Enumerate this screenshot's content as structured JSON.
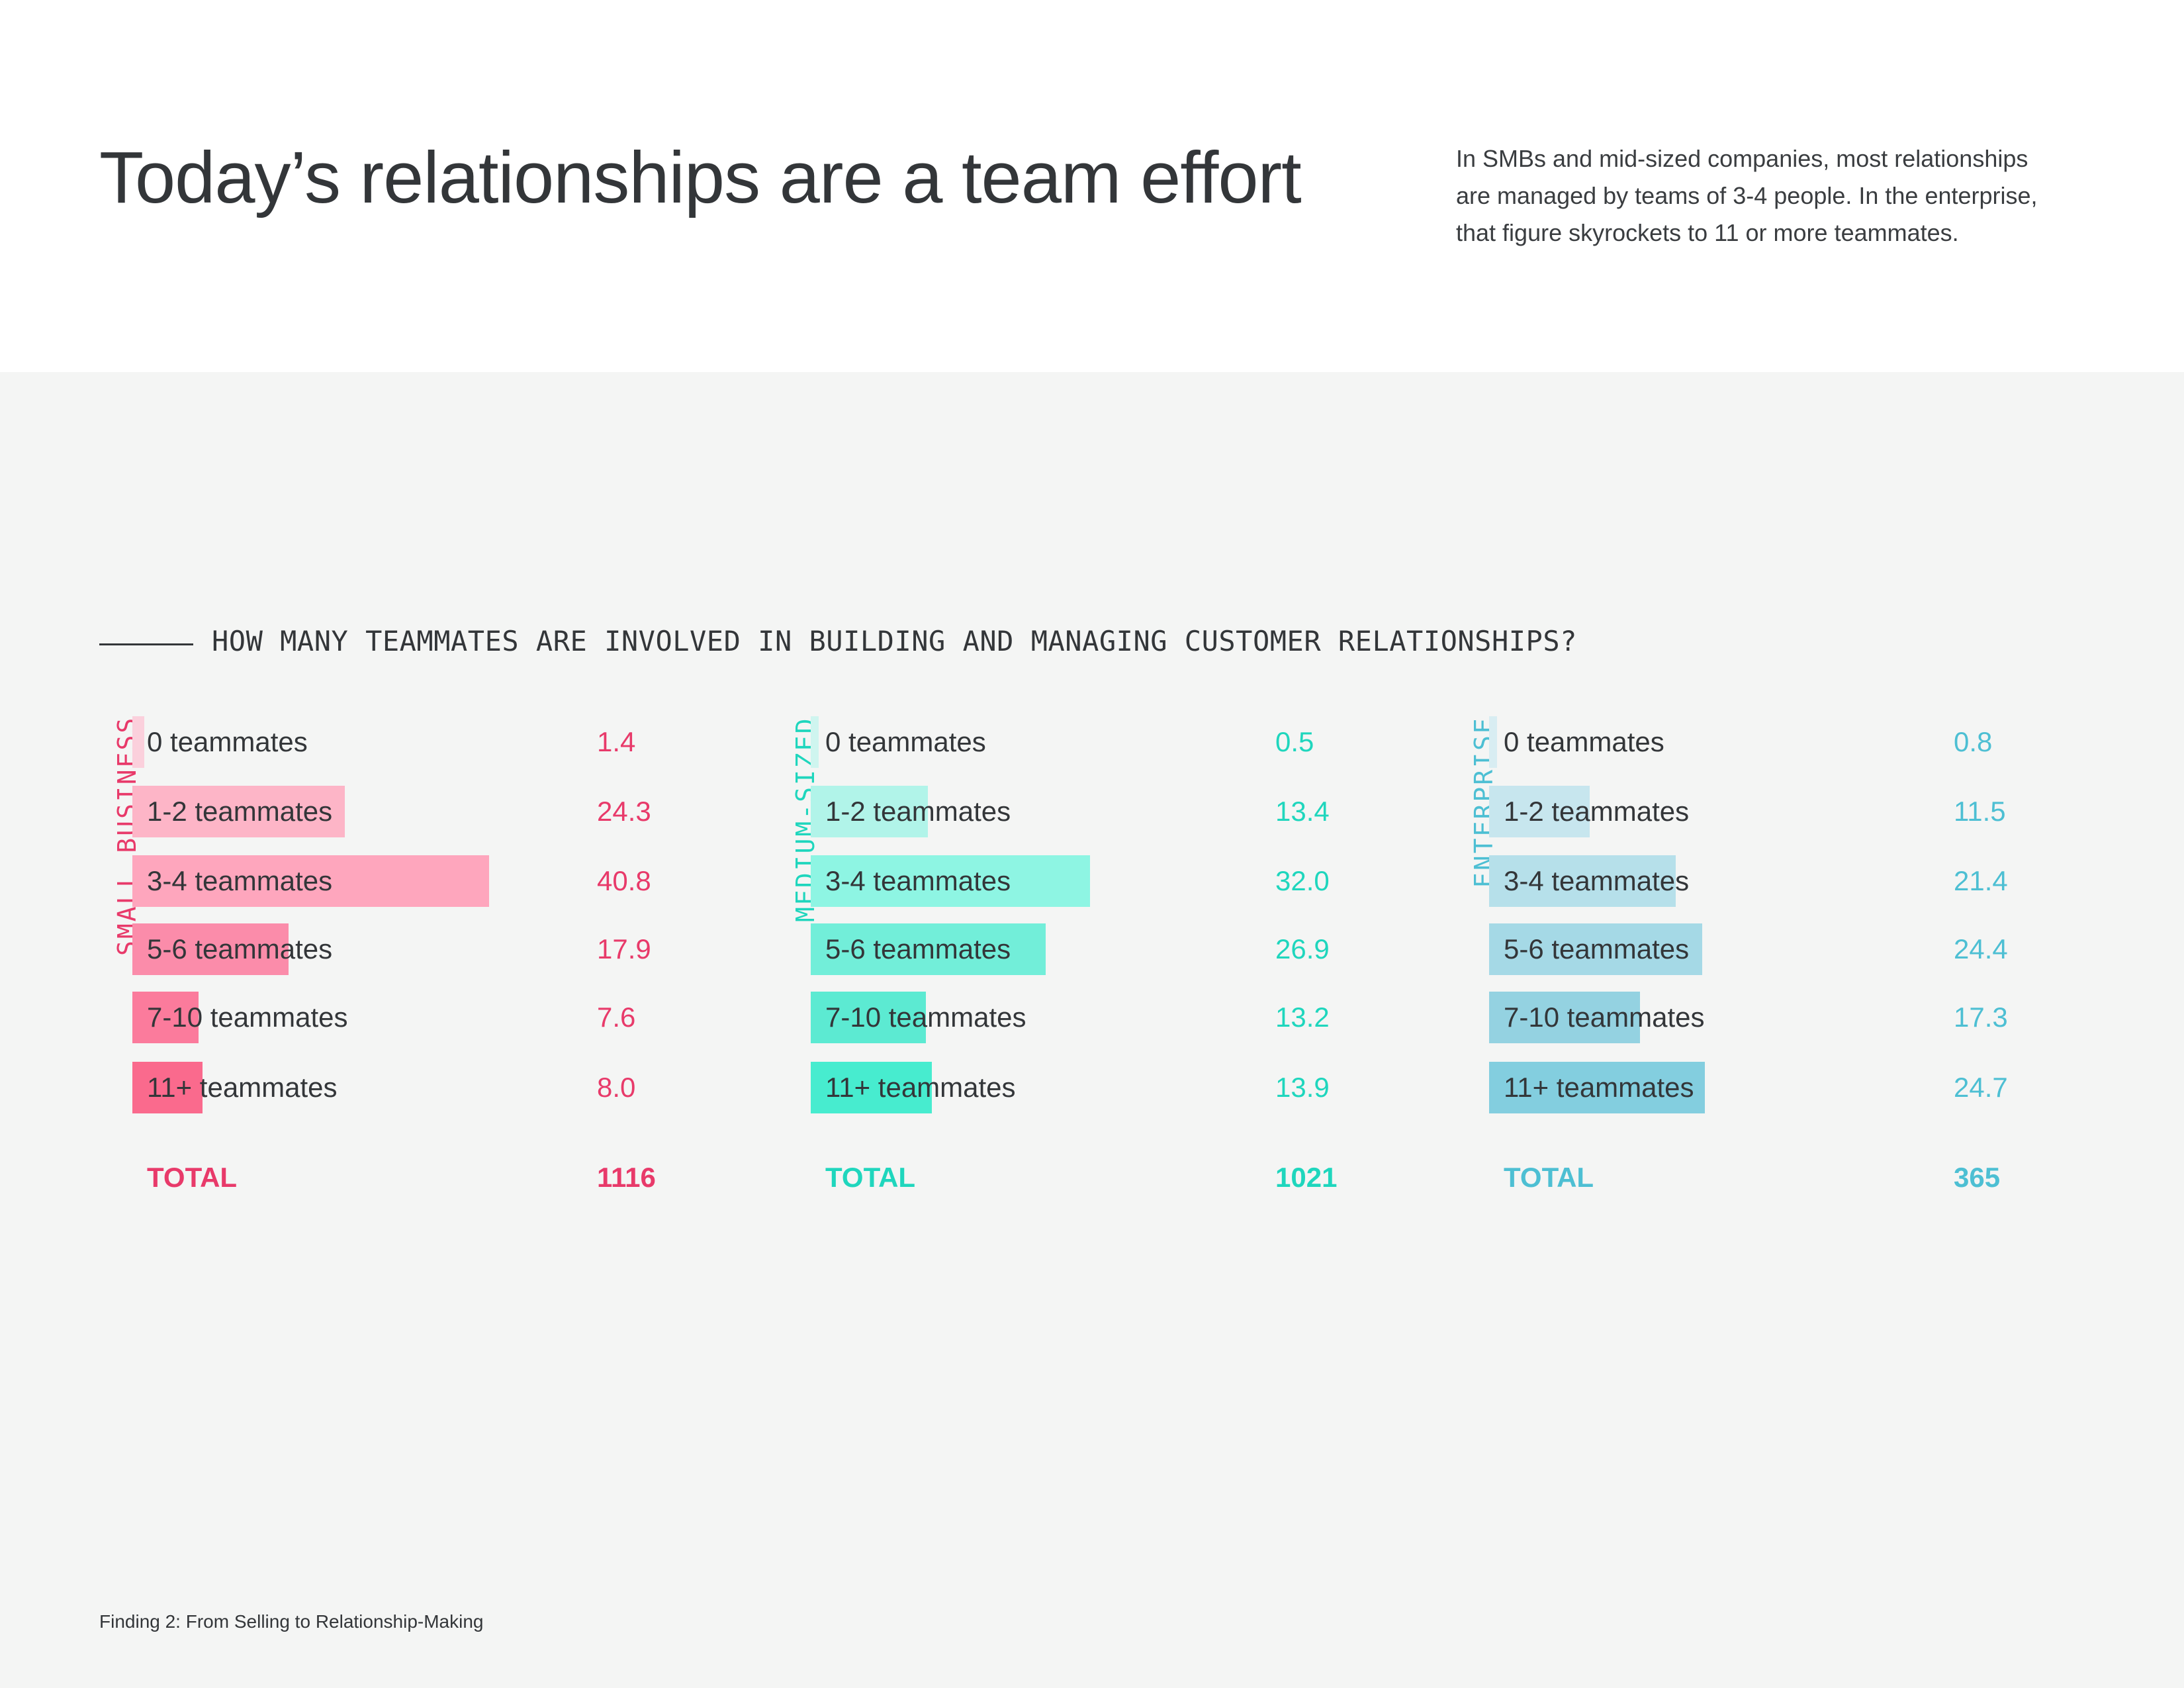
{
  "header": {
    "title": "Today’s relationships are a team effort",
    "intro": "In SMBs and mid-sized companies, most relationships are managed by teams of 3-4 people. In the enterprise, that figure skyrockets to 11 or more teammates."
  },
  "chart_data": {
    "type": "bar",
    "title": "HOW MANY TEAMMATES ARE INVOLVED IN BUILDING AND MANAGING CUSTOMER RELATIONSHIPS?",
    "categories": [
      "0 teammates",
      "1-2 teammates",
      "3-4 teammates",
      "5-6 teammates",
      "7-10 teammates",
      "11+ teammates"
    ],
    "total_label": "TOTAL",
    "value_max": 41,
    "series": [
      {
        "name": "SMALL BUSINESS",
        "values": [
          1.4,
          24.3,
          40.8,
          17.9,
          7.6,
          8.0
        ],
        "value_labels": [
          "1.4",
          "24.3",
          "40.8",
          "17.9",
          "7.6",
          "8.0"
        ],
        "total": "1116",
        "color": "#e83a6a",
        "bar_colors": [
          "#fbd0dc",
          "#fdb5c7",
          "#fea6bd",
          "#fb8caa",
          "#fb7b9c",
          "#fa6a8d"
        ]
      },
      {
        "name": "MEDIUM-SIZED",
        "values": [
          0.5,
          13.4,
          32.0,
          26.9,
          13.2,
          13.9
        ],
        "value_labels": [
          "0.5",
          "13.4",
          "32.0",
          "26.9",
          "13.2",
          "13.9"
        ],
        "total": "1021",
        "color": "#1fd6bd",
        "bar_colors": [
          "#cff5ef",
          "#b1f4e9",
          "#8ef5e3",
          "#72eed9",
          "#5cead2",
          "#47eccf"
        ]
      },
      {
        "name": "ENTERPRISE",
        "values": [
          0.8,
          11.5,
          21.4,
          24.4,
          17.3,
          24.7
        ],
        "value_labels": [
          "0.8",
          "11.5",
          "21.4",
          "24.4",
          "17.3",
          "24.7"
        ],
        "total": "365",
        "color": "#4dbfd3",
        "bar_colors": [
          "#d8edf2",
          "#c7e6ee",
          "#b6e0ea",
          "#a5d9e6",
          "#94d2e1",
          "#83cedf"
        ]
      }
    ]
  },
  "footer": {
    "text": "Finding 2: From Selling to Relationship-Making"
  }
}
